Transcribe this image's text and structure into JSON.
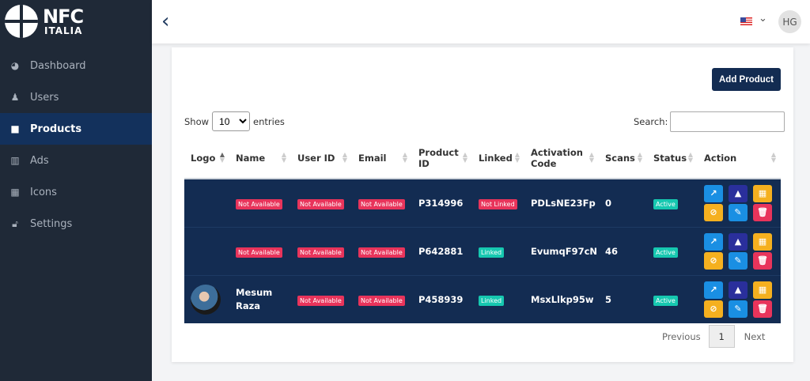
{
  "brand": {
    "line1": "NFC",
    "line2": "ITALIA"
  },
  "sidebar": {
    "items": [
      {
        "label": "Dashboard",
        "icon": "dashboard-icon"
      },
      {
        "label": "Users",
        "icon": "users-icon"
      },
      {
        "label": "Products",
        "icon": "box-icon",
        "active": true
      },
      {
        "label": "Ads",
        "icon": "building-icon"
      },
      {
        "label": "Icons",
        "icon": "qr-icon"
      },
      {
        "label": "Settings",
        "icon": "lock-icon"
      }
    ]
  },
  "header": {
    "back": "‹",
    "user_initials": "HG",
    "language": "US flag"
  },
  "main": {
    "add_product": "Add Product",
    "show": "Show",
    "entries": "entries",
    "page_size": "10",
    "search_label": "Search:",
    "columns": [
      "Logo",
      "Name",
      "User ID",
      "Email",
      "Product ID",
      "Linked",
      "Activation Code",
      "Scans",
      "Status",
      "Action"
    ],
    "rows": [
      {
        "name": "Not Available",
        "user_id": "Not Available",
        "email": "Not Available",
        "product_id": "P314996",
        "linked": "Not Linked",
        "code": "PDLsNE23Fp",
        "scans": "0",
        "status": "Active"
      },
      {
        "name": "Not Available",
        "user_id": "Not Available",
        "email": "Not Available",
        "product_id": "P642881",
        "linked": "Linked",
        "code": "EvumqF97cN",
        "scans": "46",
        "status": "Active"
      },
      {
        "name": "Mesum Raza",
        "user_id": "Not Available",
        "email": "Not Available",
        "product_id": "P458939",
        "linked": "Linked",
        "code": "MsxLlkp95w",
        "scans": "5",
        "status": "Active"
      }
    ],
    "pagination": {
      "previous": "Previous",
      "page": "1",
      "next": "Next"
    }
  },
  "colors": {
    "sidebar": "#1f2937",
    "active": "#13315c",
    "row": "#132c52",
    "red": "#e8345b",
    "teal": "#16c8b0"
  }
}
